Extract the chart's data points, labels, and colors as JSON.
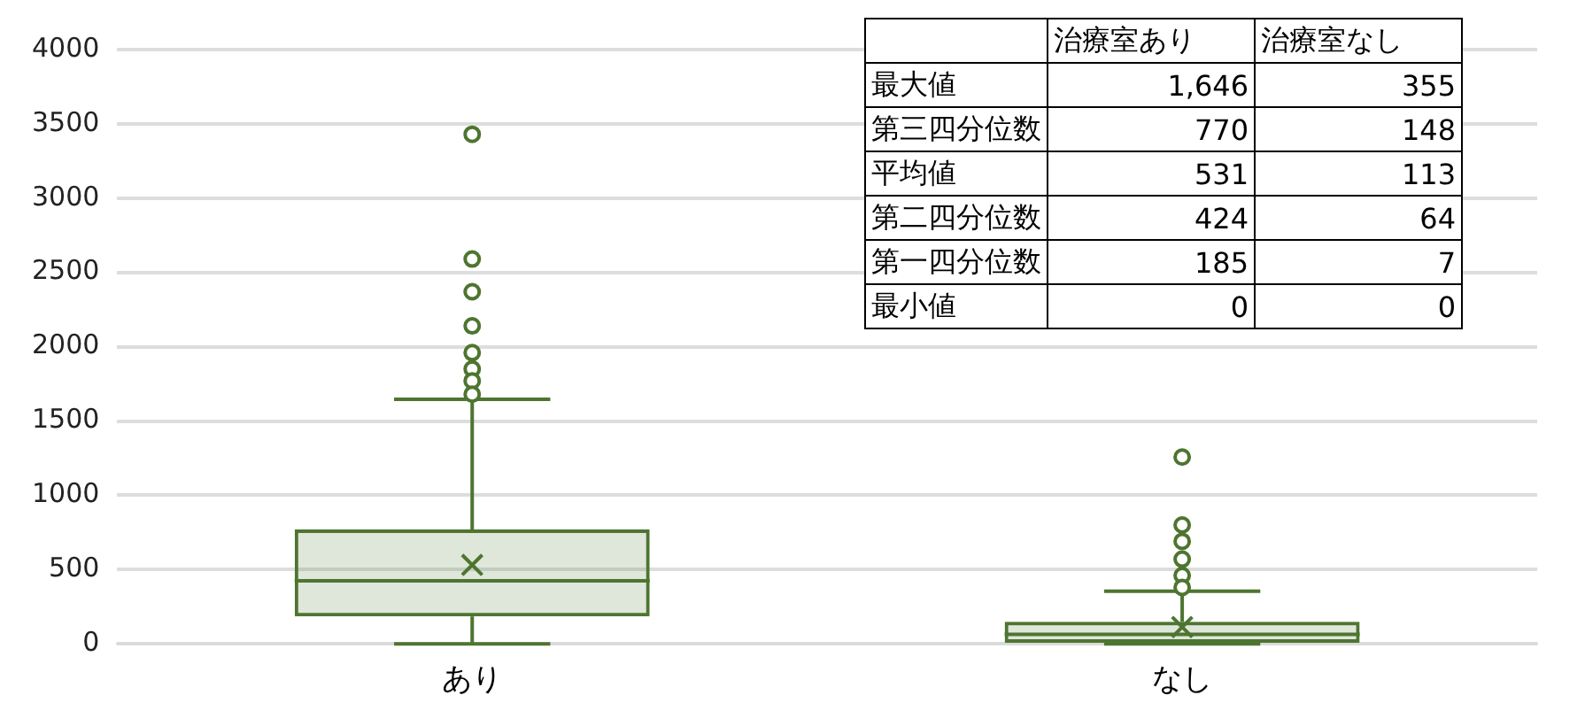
{
  "chart_data": {
    "type": "box",
    "categories": [
      "あり",
      "なし"
    ],
    "color": "#4e7530",
    "boxes": [
      {
        "low": 0,
        "q1": 185,
        "median": 424,
        "q3": 770,
        "high": 1646,
        "mean": 531,
        "outliers": [
          3430,
          2590,
          2370,
          2140,
          1960,
          1850,
          1770,
          1680
        ]
      },
      {
        "low": 0,
        "q1": 7,
        "median": 64,
        "q3": 148,
        "high": 355,
        "mean": 113,
        "outliers": [
          1257,
          800,
          690,
          570,
          460,
          380
        ]
      }
    ],
    "ylim": [
      0,
      4000
    ],
    "yticks": [
      0,
      500,
      1000,
      1500,
      2000,
      2500,
      3000,
      3500,
      4000
    ],
    "grid": "y",
    "legend": false,
    "data_labels": true,
    "annotations": [
      "治療室あり",
      "治療室なし",
      "最大値",
      "第三四分位数",
      "平均値",
      "第二四分位数",
      "第一四分位数",
      "最小値",
      "1,646",
      "355",
      "770",
      "148",
      "531",
      "113",
      "424",
      "64",
      "185",
      "7",
      "0",
      "0"
    ]
  }
}
